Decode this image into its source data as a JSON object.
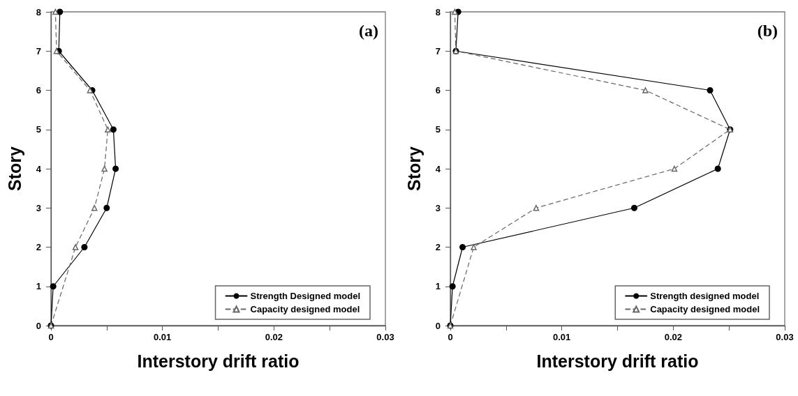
{
  "chart_data": [
    {
      "type": "line",
      "xlabel": "Interstory drift ratio",
      "ylabel": "Story",
      "annotations": [
        "(a)"
      ],
      "xlim": [
        0,
        0.03
      ],
      "xticks": [
        0,
        {
          "value": 0.005,
          "label": null
        },
        0.01,
        {
          "value": 0.015,
          "label": null
        },
        0.02,
        {
          "value": 0.025,
          "label": null
        },
        0.03
      ],
      "ylim": [
        0,
        8
      ],
      "yticks": [
        0,
        1,
        2,
        3,
        4,
        5,
        6,
        7,
        8
      ],
      "grid": false,
      "legend": "bottom right",
      "series": [
        {
          "name": "Strength Designed model",
          "color": "#000000",
          "marker": "circle",
          "line_style": "solid",
          "x": [
            0,
            0.0002,
            0.003,
            0.005,
            0.0058,
            0.0056,
            0.0037,
            0.0007,
            0.0008
          ],
          "values": [
            0,
            1,
            2,
            3,
            4,
            5,
            6,
            7,
            8
          ]
        },
        {
          "name": "Capacity designed model",
          "color": "#666666",
          "marker": "triangle",
          "line_style": "dashed",
          "x": [
            0,
            0.0002,
            0.0022,
            0.0039,
            0.0048,
            0.0051,
            0.0035,
            0.0005,
            0.0004
          ],
          "values": [
            0,
            null,
            2,
            3,
            4,
            5,
            6,
            7,
            8
          ]
        }
      ]
    },
    {
      "type": "line",
      "xlabel": "Interstory drift ratio",
      "ylabel": "Story",
      "annotations": [
        "(b)"
      ],
      "xlim": [
        0,
        0.03
      ],
      "xticks": [
        0,
        {
          "value": 0.005,
          "label": null
        },
        0.01,
        {
          "value": 0.015,
          "label": null
        },
        0.02,
        {
          "value": 0.025,
          "label": null
        },
        0.03
      ],
      "ylim": [
        0,
        8
      ],
      "yticks": [
        0,
        1,
        2,
        3,
        4,
        5,
        6,
        7,
        8
      ],
      "grid": false,
      "legend": "bottom right",
      "series": [
        {
          "name": "Strength designed model",
          "color": "#000000",
          "marker": "circle",
          "line_style": "solid",
          "x": [
            0,
            0.0002,
            0.0011,
            0.0165,
            0.024,
            0.0251,
            0.0233,
            0.0005,
            0.0007
          ],
          "values": [
            0,
            1,
            2,
            3,
            4,
            5,
            6,
            7,
            8
          ]
        },
        {
          "name": "Capacity designed model",
          "color": "#666666",
          "marker": "triangle",
          "line_style": "dashed",
          "x": [
            0,
            0.0002,
            0.0021,
            0.0077,
            0.0201,
            0.0251,
            0.0175,
            0.0005,
            0.0004
          ],
          "values": [
            0,
            null,
            2,
            3,
            4,
            5,
            6,
            7,
            8
          ]
        }
      ]
    }
  ]
}
